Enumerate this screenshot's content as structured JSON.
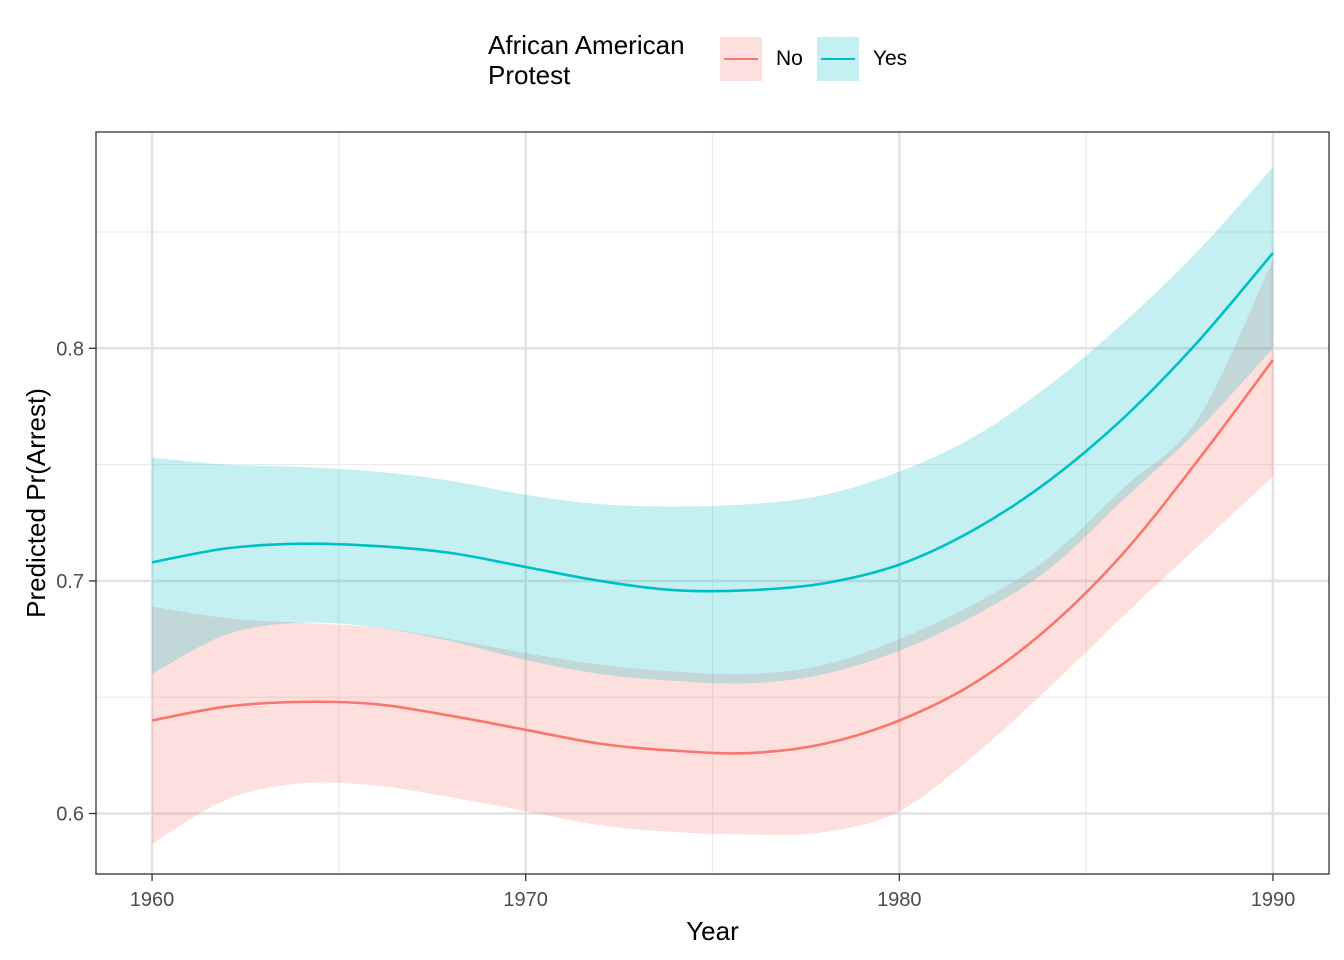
{
  "chart_data": {
    "type": "line",
    "title": "",
    "xlabel": "Year",
    "ylabel": "Predicted Pr(Arrest)",
    "xlim": [
      1958.5,
      1991.5
    ],
    "ylim": [
      0.574,
      0.893
    ],
    "x_ticks": [
      1960,
      1970,
      1980,
      1990
    ],
    "y_ticks": [
      0.6,
      0.7,
      0.8
    ],
    "x_minor_ticks": [
      1965,
      1975,
      1985
    ],
    "y_minor_ticks": [
      0.65,
      0.75,
      0.85
    ],
    "grid": true,
    "legend": {
      "title": "African American\nProtest",
      "position": "top"
    },
    "x": [
      1960,
      1962,
      1964,
      1966,
      1968,
      1970,
      1972,
      1974,
      1976,
      1978,
      1980,
      1982,
      1984,
      1986,
      1988,
      1990
    ],
    "series": [
      {
        "name": "No",
        "color": "#F8766D",
        "fill": "#F8766D",
        "values": [
          0.64,
          0.646,
          0.648,
          0.647,
          0.642,
          0.636,
          0.63,
          0.627,
          0.626,
          0.63,
          0.64,
          0.656,
          0.68,
          0.712,
          0.752,
          0.795
        ],
        "lower": [
          0.587,
          0.606,
          0.613,
          0.612,
          0.607,
          0.601,
          0.595,
          0.592,
          0.591,
          0.592,
          0.601,
          0.625,
          0.654,
          0.685,
          0.715,
          0.745
        ],
        "upper": [
          0.689,
          0.684,
          0.682,
          0.68,
          0.675,
          0.669,
          0.664,
          0.661,
          0.66,
          0.664,
          0.675,
          0.69,
          0.71,
          0.74,
          0.77,
          0.838
        ]
      },
      {
        "name": "Yes",
        "color": "#00BFC4",
        "fill": "#00BFC4",
        "values": [
          0.708,
          0.714,
          0.716,
          0.715,
          0.712,
          0.706,
          0.7,
          0.696,
          0.696,
          0.699,
          0.707,
          0.722,
          0.743,
          0.77,
          0.803,
          0.841
        ],
        "lower": [
          0.66,
          0.677,
          0.682,
          0.68,
          0.674,
          0.666,
          0.66,
          0.657,
          0.656,
          0.66,
          0.67,
          0.685,
          0.705,
          0.735,
          0.765,
          0.8
        ],
        "upper": [
          0.753,
          0.75,
          0.749,
          0.747,
          0.743,
          0.737,
          0.733,
          0.732,
          0.733,
          0.737,
          0.747,
          0.762,
          0.784,
          0.811,
          0.842,
          0.878
        ]
      }
    ]
  }
}
